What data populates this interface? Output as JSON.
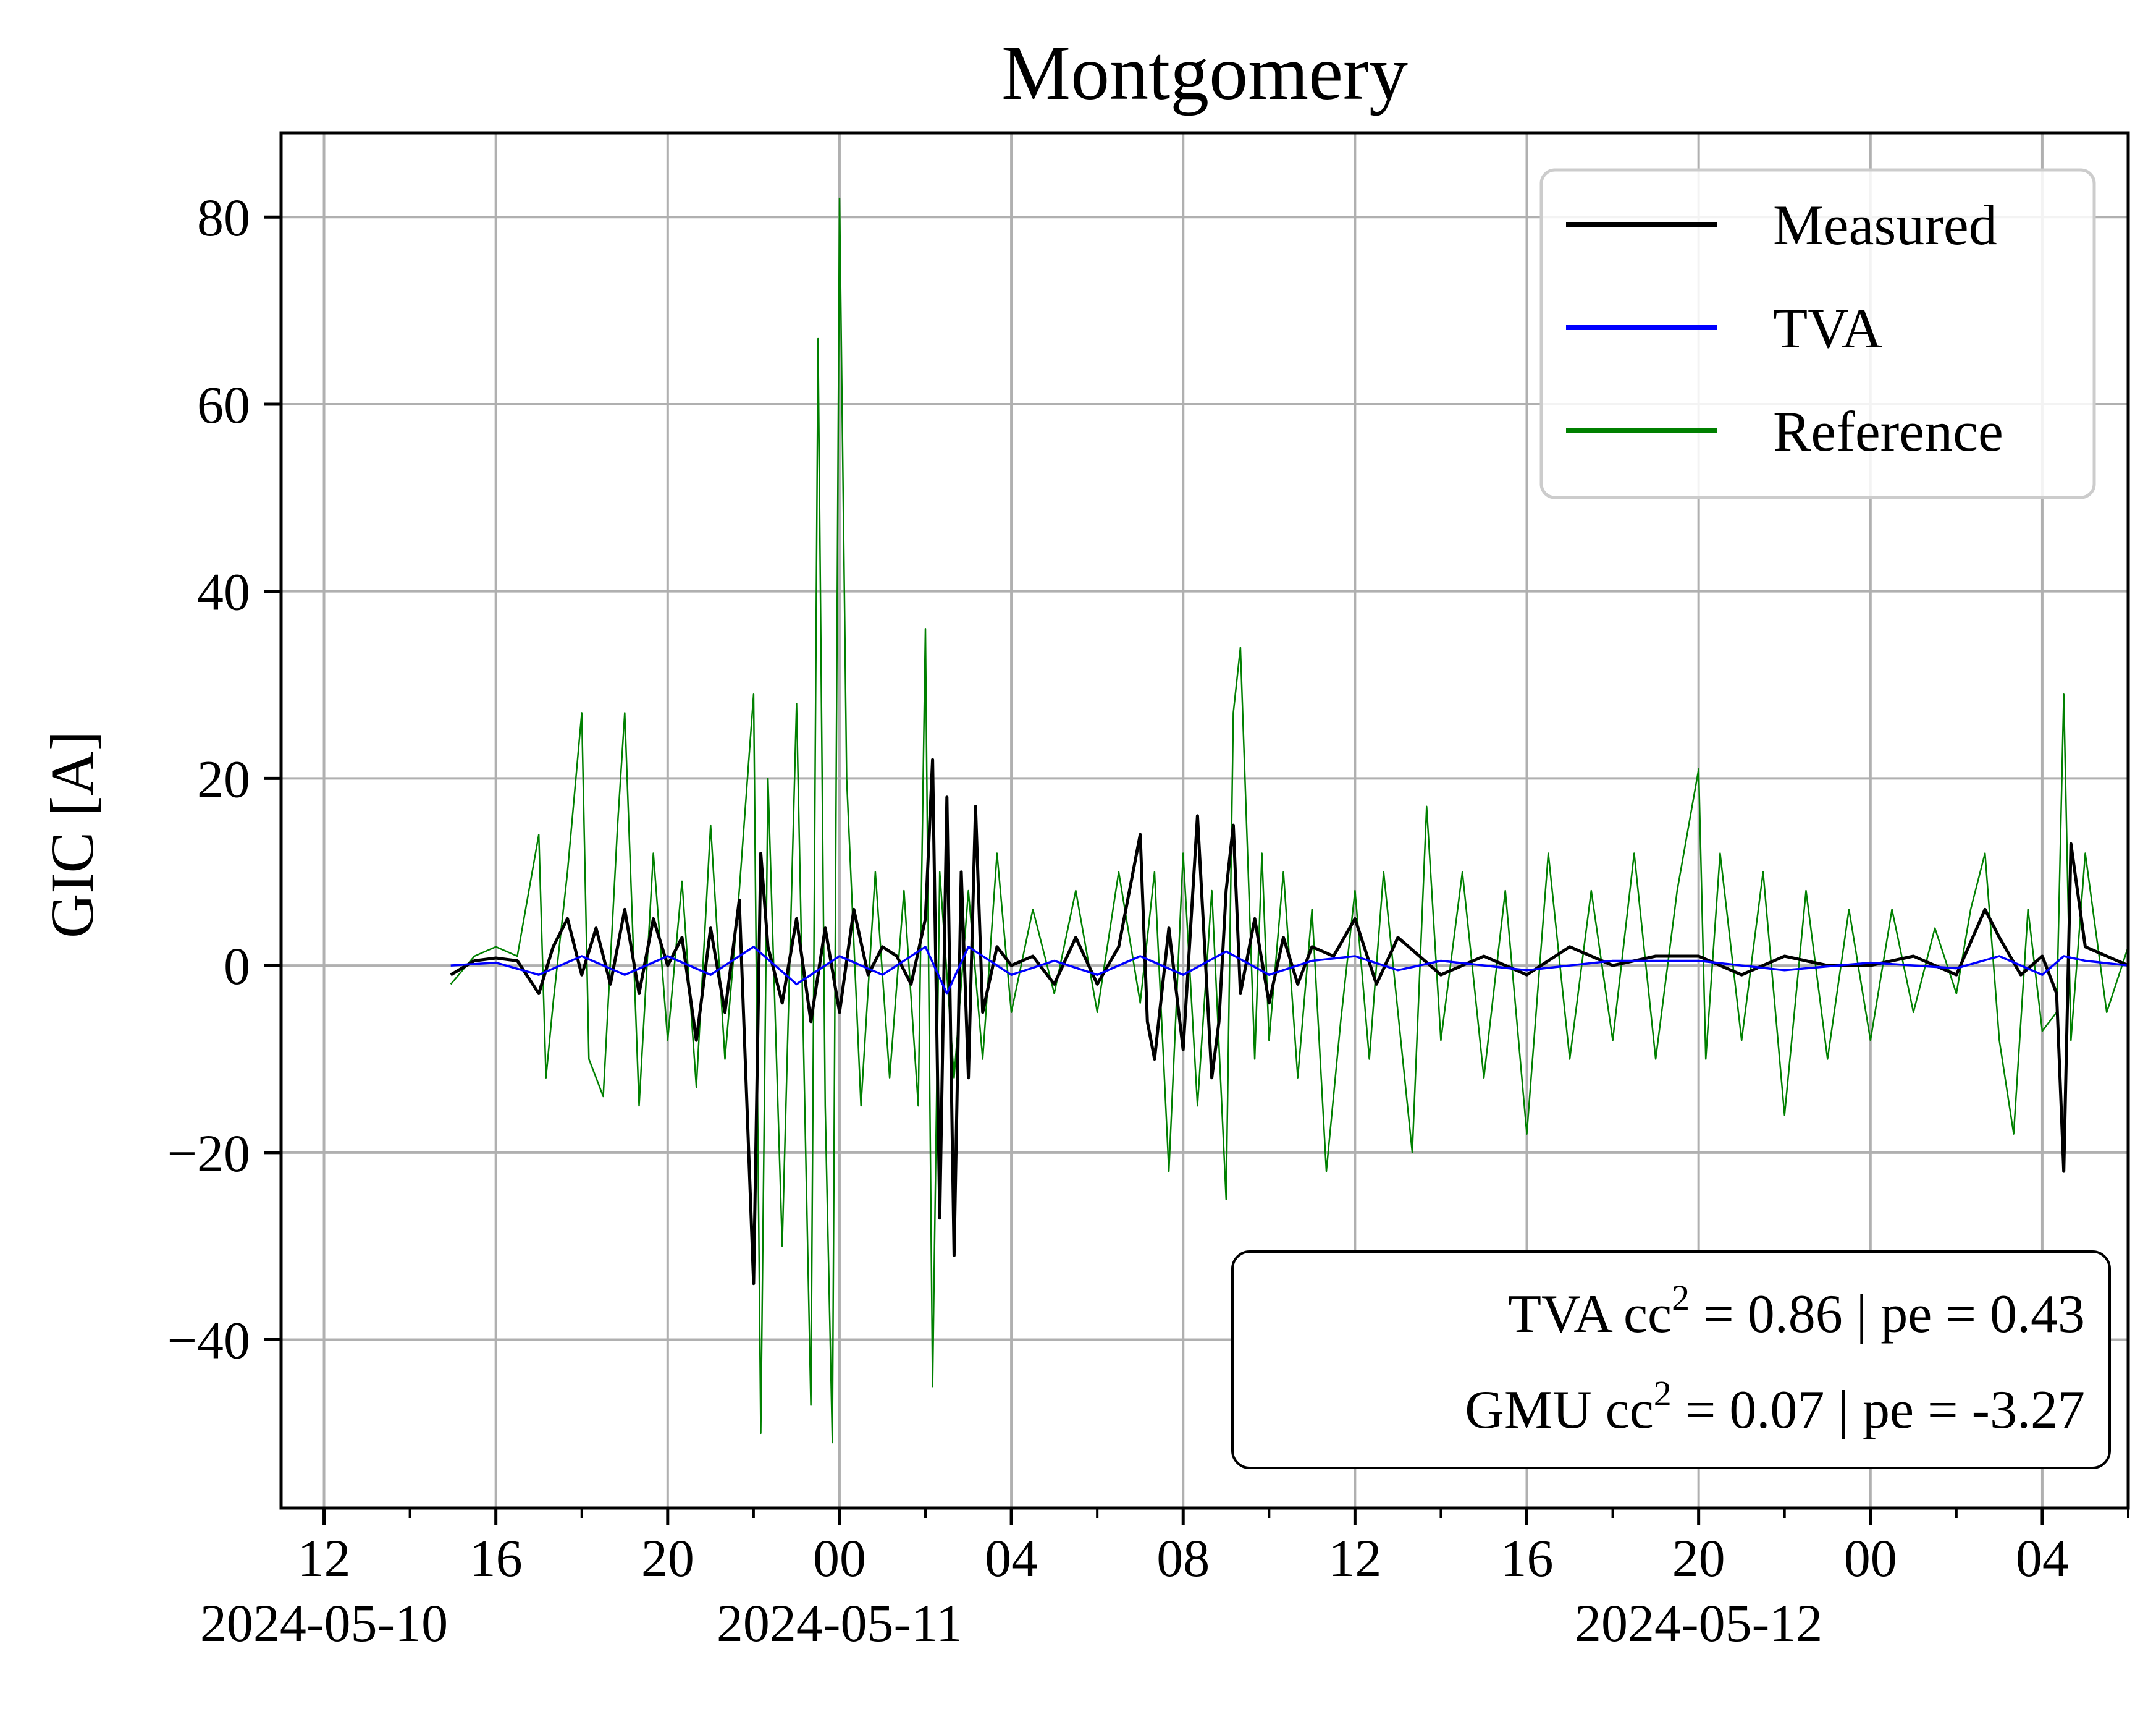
{
  "chart_data": {
    "type": "line",
    "title": "Montgomery",
    "xlabel": "",
    "ylabel": "GIC [A]",
    "xlim": [
      "2024-05-10 11:00",
      "2024-05-12 06:00"
    ],
    "ylim": [
      -58,
      89
    ],
    "grid": true,
    "legend_position": "top-right",
    "x_ticks": [
      {
        "value": "2024-05-10 12:00",
        "label": "12",
        "date": "2024-05-10"
      },
      {
        "value": "2024-05-10 16:00",
        "label": "16",
        "date": ""
      },
      {
        "value": "2024-05-10 20:00",
        "label": "20",
        "date": ""
      },
      {
        "value": "2024-05-11 00:00",
        "label": "00",
        "date": "2024-05-11"
      },
      {
        "value": "2024-05-11 04:00",
        "label": "04",
        "date": ""
      },
      {
        "value": "2024-05-11 08:00",
        "label": "08",
        "date": ""
      },
      {
        "value": "2024-05-11 12:00",
        "label": "12",
        "date": ""
      },
      {
        "value": "2024-05-11 16:00",
        "label": "16",
        "date": ""
      },
      {
        "value": "2024-05-11 20:00",
        "label": "20",
        "date": "2024-05-12"
      },
      {
        "value": "2024-05-12 00:00",
        "label": "00",
        "date": ""
      },
      {
        "value": "2024-05-12 04:00",
        "label": "04",
        "date": ""
      }
    ],
    "y_ticks": [
      {
        "value": 80,
        "label": "80"
      },
      {
        "value": 60,
        "label": "60"
      },
      {
        "value": 40,
        "label": "40"
      },
      {
        "value": 20,
        "label": "20"
      },
      {
        "value": 0,
        "label": "0"
      },
      {
        "value": -20,
        "label": "−20"
      },
      {
        "value": -40,
        "label": "−40"
      }
    ],
    "series": [
      {
        "name": "Measured",
        "color": "#000000",
        "x": [
          "2024-05-10 14:57",
          "2024-05-10 15:30",
          "2024-05-10 16:00",
          "2024-05-10 16:30",
          "2024-05-10 17:00",
          "2024-05-10 17:20",
          "2024-05-10 17:40",
          "2024-05-10 18:00",
          "2024-05-10 18:20",
          "2024-05-10 18:40",
          "2024-05-10 19:00",
          "2024-05-10 19:20",
          "2024-05-10 19:40",
          "2024-05-10 20:00",
          "2024-05-10 20:20",
          "2024-05-10 20:40",
          "2024-05-10 21:00",
          "2024-05-10 21:20",
          "2024-05-10 21:40",
          "2024-05-10 22:00",
          "2024-05-10 22:10",
          "2024-05-10 22:20",
          "2024-05-10 22:40",
          "2024-05-10 23:00",
          "2024-05-10 23:20",
          "2024-05-10 23:40",
          "2024-05-11 00:00",
          "2024-05-11 00:20",
          "2024-05-11 00:40",
          "2024-05-11 01:00",
          "2024-05-11 01:20",
          "2024-05-11 01:40",
          "2024-05-11 02:00",
          "2024-05-11 02:10",
          "2024-05-11 02:20",
          "2024-05-11 02:30",
          "2024-05-11 02:40",
          "2024-05-11 02:50",
          "2024-05-11 03:00",
          "2024-05-11 03:10",
          "2024-05-11 03:20",
          "2024-05-11 03:40",
          "2024-05-11 04:00",
          "2024-05-11 04:30",
          "2024-05-11 05:00",
          "2024-05-11 05:30",
          "2024-05-11 06:00",
          "2024-05-11 06:30",
          "2024-05-11 07:00",
          "2024-05-11 07:10",
          "2024-05-11 07:20",
          "2024-05-11 07:40",
          "2024-05-11 08:00",
          "2024-05-11 08:20",
          "2024-05-11 08:40",
          "2024-05-11 08:50",
          "2024-05-11 09:00",
          "2024-05-11 09:10",
          "2024-05-11 09:20",
          "2024-05-11 09:40",
          "2024-05-11 10:00",
          "2024-05-11 10:20",
          "2024-05-11 10:40",
          "2024-05-11 11:00",
          "2024-05-11 11:30",
          "2024-05-11 12:00",
          "2024-05-11 12:30",
          "2024-05-11 13:00",
          "2024-05-11 13:30",
          "2024-05-11 14:00",
          "2024-05-11 15:00",
          "2024-05-11 16:00",
          "2024-05-11 17:00",
          "2024-05-11 18:00",
          "2024-05-11 19:00",
          "2024-05-11 20:00",
          "2024-05-11 21:00",
          "2024-05-11 22:00",
          "2024-05-11 23:00",
          "2024-05-12 00:00",
          "2024-05-12 01:00",
          "2024-05-12 02:00",
          "2024-05-12 02:40",
          "2024-05-12 03:00",
          "2024-05-12 03:30",
          "2024-05-12 04:00",
          "2024-05-12 04:20",
          "2024-05-12 04:30",
          "2024-05-12 04:40",
          "2024-05-12 05:00",
          "2024-05-12 05:30",
          "2024-05-12 06:00"
        ],
        "values": [
          -1,
          0.5,
          0.8,
          0.5,
          -3,
          2,
          5,
          -1,
          4,
          -2,
          6,
          -3,
          5,
          0,
          3,
          -8,
          4,
          -5,
          7,
          -34,
          12,
          2,
          -4,
          5,
          -6,
          4,
          -5,
          6,
          -1,
          2,
          1,
          -2,
          5,
          22,
          -27,
          18,
          -31,
          10,
          -12,
          17,
          -5,
          2,
          0,
          1,
          -2,
          3,
          -2,
          2,
          14,
          -6,
          -10,
          4,
          -9,
          16,
          -12,
          -6,
          8,
          15,
          -3,
          5,
          -4,
          3,
          -2,
          2,
          1,
          5,
          -2,
          3,
          1,
          -1,
          1,
          -1,
          2,
          0,
          1,
          1,
          -1,
          1,
          0,
          0,
          1,
          -1,
          6,
          3,
          -1,
          1,
          -3,
          -22,
          13,
          2,
          1,
          0
        ]
      },
      {
        "name": "TVA",
        "color": "#0000ff",
        "x": [
          "2024-05-10 14:57",
          "2024-05-10 16:00",
          "2024-05-10 17:00",
          "2024-05-10 18:00",
          "2024-05-10 19:00",
          "2024-05-10 20:00",
          "2024-05-10 21:00",
          "2024-05-10 22:00",
          "2024-05-10 23:00",
          "2024-05-11 00:00",
          "2024-05-11 01:00",
          "2024-05-11 02:00",
          "2024-05-11 02:30",
          "2024-05-11 03:00",
          "2024-05-11 04:00",
          "2024-05-11 05:00",
          "2024-05-11 06:00",
          "2024-05-11 07:00",
          "2024-05-11 08:00",
          "2024-05-11 09:00",
          "2024-05-11 10:00",
          "2024-05-11 11:00",
          "2024-05-11 12:00",
          "2024-05-11 13:00",
          "2024-05-11 14:00",
          "2024-05-11 16:00",
          "2024-05-11 18:00",
          "2024-05-11 20:00",
          "2024-05-11 22:00",
          "2024-05-12 00:00",
          "2024-05-12 02:00",
          "2024-05-12 03:00",
          "2024-05-12 04:00",
          "2024-05-12 04:30",
          "2024-05-12 05:00",
          "2024-05-12 06:00"
        ],
        "values": [
          0,
          0.3,
          -1,
          1,
          -1,
          1,
          -1,
          2,
          -2,
          1,
          -1,
          2,
          -3,
          2,
          -1,
          0.5,
          -1,
          1,
          -1,
          1.5,
          -1,
          0.5,
          1,
          -0.5,
          0.5,
          -0.5,
          0.5,
          0.5,
          -0.5,
          0.3,
          -0.3,
          1,
          -1,
          1,
          0.5,
          0
        ]
      },
      {
        "name": "Reference",
        "color": "#008000",
        "x": [
          "2024-05-10 14:57",
          "2024-05-10 15:30",
          "2024-05-10 16:00",
          "2024-05-10 16:30",
          "2024-05-10 17:00",
          "2024-05-10 17:10",
          "2024-05-10 17:20",
          "2024-05-10 17:40",
          "2024-05-10 18:00",
          "2024-05-10 18:10",
          "2024-05-10 18:30",
          "2024-05-10 18:50",
          "2024-05-10 19:00",
          "2024-05-10 19:20",
          "2024-05-10 19:40",
          "2024-05-10 20:00",
          "2024-05-10 20:20",
          "2024-05-10 20:40",
          "2024-05-10 21:00",
          "2024-05-10 21:20",
          "2024-05-10 21:40",
          "2024-05-10 22:00",
          "2024-05-10 22:10",
          "2024-05-10 22:20",
          "2024-05-10 22:40",
          "2024-05-10 23:00",
          "2024-05-10 23:20",
          "2024-05-10 23:30",
          "2024-05-10 23:40",
          "2024-05-10 23:50",
          "2024-05-11 00:00",
          "2024-05-11 00:10",
          "2024-05-11 00:30",
          "2024-05-11 00:50",
          "2024-05-11 01:10",
          "2024-05-11 01:30",
          "2024-05-11 01:50",
          "2024-05-11 02:00",
          "2024-05-11 02:10",
          "2024-05-11 02:20",
          "2024-05-11 02:40",
          "2024-05-11 03:00",
          "2024-05-11 03:20",
          "2024-05-11 03:40",
          "2024-05-11 04:00",
          "2024-05-11 04:30",
          "2024-05-11 05:00",
          "2024-05-11 05:30",
          "2024-05-11 06:00",
          "2024-05-11 06:30",
          "2024-05-11 07:00",
          "2024-05-11 07:20",
          "2024-05-11 07:40",
          "2024-05-11 08:00",
          "2024-05-11 08:20",
          "2024-05-11 08:40",
          "2024-05-11 09:00",
          "2024-05-11 09:10",
          "2024-05-11 09:20",
          "2024-05-11 09:40",
          "2024-05-11 09:50",
          "2024-05-11 10:00",
          "2024-05-11 10:20",
          "2024-05-11 10:40",
          "2024-05-11 11:00",
          "2024-05-11 11:20",
          "2024-05-11 11:40",
          "2024-05-11 12:00",
          "2024-05-11 12:20",
          "2024-05-11 12:40",
          "2024-05-11 13:00",
          "2024-05-11 13:20",
          "2024-05-11 13:40",
          "2024-05-11 14:00",
          "2024-05-11 14:30",
          "2024-05-11 15:00",
          "2024-05-11 15:30",
          "2024-05-11 16:00",
          "2024-05-11 16:30",
          "2024-05-11 17:00",
          "2024-05-11 17:30",
          "2024-05-11 18:00",
          "2024-05-11 18:30",
          "2024-05-11 19:00",
          "2024-05-11 19:30",
          "2024-05-11 20:00",
          "2024-05-11 20:10",
          "2024-05-11 20:30",
          "2024-05-11 21:00",
          "2024-05-11 21:30",
          "2024-05-11 22:00",
          "2024-05-11 22:30",
          "2024-05-11 23:00",
          "2024-05-11 23:30",
          "2024-05-12 00:00",
          "2024-05-12 00:30",
          "2024-05-12 01:00",
          "2024-05-12 01:30",
          "2024-05-12 02:00",
          "2024-05-12 02:20",
          "2024-05-12 02:40",
          "2024-05-12 03:00",
          "2024-05-12 03:20",
          "2024-05-12 03:40",
          "2024-05-12 04:00",
          "2024-05-12 04:20",
          "2024-05-12 04:30",
          "2024-05-12 04:40",
          "2024-05-12 05:00",
          "2024-05-12 05:30",
          "2024-05-12 06:00"
        ],
        "values": [
          -2,
          1,
          2,
          1,
          14,
          -12,
          -4,
          10,
          27,
          -10,
          -14,
          15,
          27,
          -15,
          12,
          -8,
          9,
          -13,
          15,
          -10,
          8,
          29,
          -50,
          20,
          -30,
          28,
          -47,
          67,
          -15,
          -51,
          82,
          20,
          -15,
          10,
          -12,
          8,
          -15,
          36,
          -45,
          10,
          -12,
          8,
          -10,
          12,
          -5,
          6,
          -3,
          8,
          -5,
          10,
          -4,
          10,
          -22,
          12,
          -15,
          8,
          -25,
          27,
          34,
          -10,
          12,
          -8,
          10,
          -12,
          6,
          -22,
          -6,
          8,
          -10,
          10,
          -5,
          -20,
          17,
          -8,
          10,
          -12,
          8,
          -18,
          12,
          -10,
          8,
          -8,
          12,
          -10,
          8,
          21,
          -10,
          12,
          -8,
          10,
          -16,
          8,
          -10,
          6,
          -8,
          6,
          -5,
          4,
          -3,
          6,
          12,
          -8,
          -18,
          6,
          -7,
          -5,
          29,
          -8,
          12,
          -5,
          2
        ]
      }
    ],
    "legend": [
      "Measured",
      "TVA",
      "Reference"
    ],
    "annotations": [
      {
        "prefix": "TVA cc",
        "sup": "2",
        "suffix": " = 0.86 | pe = 0.43"
      },
      {
        "prefix": "GMU cc",
        "sup": "2",
        "suffix": " = 0.07 | pe = -3.27"
      }
    ],
    "colors": {
      "measured": "#000000",
      "tva": "#0000ff",
      "reference": "#008000",
      "grid": "#b0b0b0"
    }
  }
}
